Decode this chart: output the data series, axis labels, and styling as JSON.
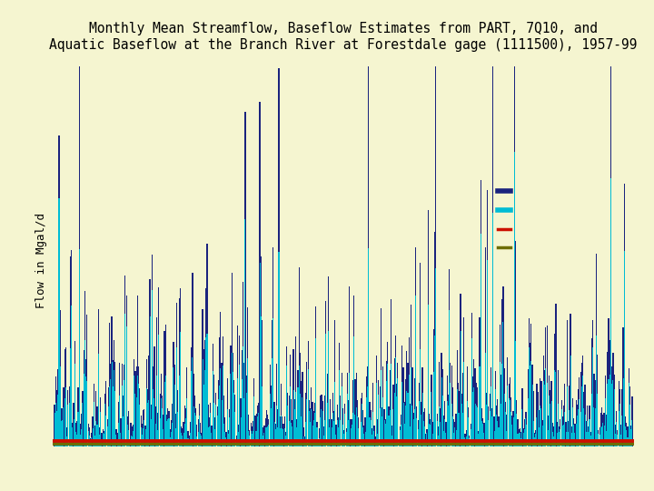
{
  "title": "Monthly Mean Streamflow, Baseflow Estimates from PART, 7Q10, and\nAquatic Baseflow at the Branch River at Forestdale gage (1111500), 1957-99",
  "ylabel": "Flow in Mgal/d",
  "background_color": "#f5f5d0",
  "n_months": 516,
  "seed": 12345,
  "streamflow_color": "#1a237e",
  "baseflow_color": "#00bcd4",
  "h7q10_value": 0.6,
  "h7q10_color": "#6d6e00",
  "aquatic_value": 1.5,
  "aquatic_color": "#cc1100",
  "ylim_max": 120,
  "title_fontsize": 10.5,
  "ylabel_fontsize": 9,
  "legend_entries": [
    {
      "color": "#1a237e",
      "lw": 4
    },
    {
      "color": "#00bcd4",
      "lw": 4
    },
    {
      "color": "#cc1100",
      "lw": 2.5
    },
    {
      "color": "#6d6e00",
      "lw": 2.5
    }
  ]
}
